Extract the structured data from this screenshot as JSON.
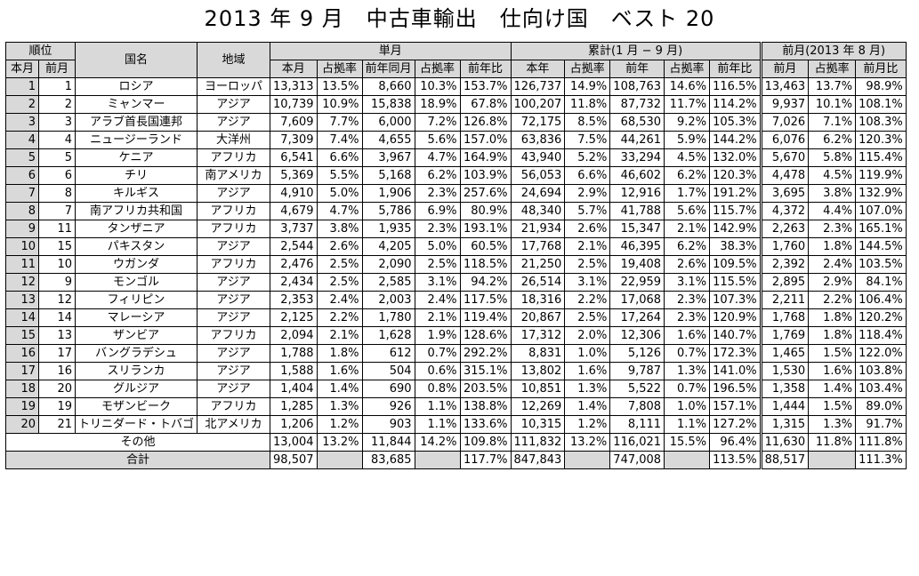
{
  "title": "2013 年 9 月　中古車輸出　仕向け国　ベスト 20",
  "headers": {
    "rank": "順位",
    "rank_current": "本月",
    "rank_prev": "前月",
    "country": "国名",
    "region": "地域",
    "single_month": "単月",
    "cumulative": "累計(1 月 − 9 月)",
    "prev_month": "前月(2013 年 8 月)",
    "col_this_month": "本月",
    "col_share": "占拠率",
    "col_same_month_prev_year": "前年同月",
    "col_yoy": "前年比",
    "col_this_year": "本年",
    "col_prev_year": "前年",
    "col_prev_month": "前月",
    "col_mom": "前月比"
  },
  "rows": [
    {
      "rank": "1",
      "prev_rank": "1",
      "country": "ロシア",
      "region": "ヨーロッパ",
      "m_units": "13,313",
      "m_share": "13.5%",
      "m_py_units": "8,660",
      "m_py_share": "10.3%",
      "m_yoy": "153.7%",
      "c_units": "126,737",
      "c_share": "14.9%",
      "c_py_units": "108,763",
      "c_py_share": "14.6%",
      "c_yoy": "116.5%",
      "p_units": "13,463",
      "p_share": "13.7%",
      "p_mom": "98.9%"
    },
    {
      "rank": "2",
      "prev_rank": "2",
      "country": "ミャンマー",
      "region": "アジア",
      "m_units": "10,739",
      "m_share": "10.9%",
      "m_py_units": "15,838",
      "m_py_share": "18.9%",
      "m_yoy": "67.8%",
      "c_units": "100,207",
      "c_share": "11.8%",
      "c_py_units": "87,732",
      "c_py_share": "11.7%",
      "c_yoy": "114.2%",
      "p_units": "9,937",
      "p_share": "10.1%",
      "p_mom": "108.1%"
    },
    {
      "rank": "3",
      "prev_rank": "3",
      "country": "アラブ首長国連邦",
      "region": "アジア",
      "m_units": "7,609",
      "m_share": "7.7%",
      "m_py_units": "6,000",
      "m_py_share": "7.2%",
      "m_yoy": "126.8%",
      "c_units": "72,175",
      "c_share": "8.5%",
      "c_py_units": "68,530",
      "c_py_share": "9.2%",
      "c_yoy": "105.3%",
      "p_units": "7,026",
      "p_share": "7.1%",
      "p_mom": "108.3%"
    },
    {
      "rank": "4",
      "prev_rank": "4",
      "country": "ニュージーランド",
      "region": "大洋州",
      "m_units": "7,309",
      "m_share": "7.4%",
      "m_py_units": "4,655",
      "m_py_share": "5.6%",
      "m_yoy": "157.0%",
      "c_units": "63,836",
      "c_share": "7.5%",
      "c_py_units": "44,261",
      "c_py_share": "5.9%",
      "c_yoy": "144.2%",
      "p_units": "6,076",
      "p_share": "6.2%",
      "p_mom": "120.3%"
    },
    {
      "rank": "5",
      "prev_rank": "5",
      "country": "ケニア",
      "region": "アフリカ",
      "m_units": "6,541",
      "m_share": "6.6%",
      "m_py_units": "3,967",
      "m_py_share": "4.7%",
      "m_yoy": "164.9%",
      "c_units": "43,940",
      "c_share": "5.2%",
      "c_py_units": "33,294",
      "c_py_share": "4.5%",
      "c_yoy": "132.0%",
      "p_units": "5,670",
      "p_share": "5.8%",
      "p_mom": "115.4%"
    },
    {
      "rank": "6",
      "prev_rank": "6",
      "country": "チリ",
      "region": "南アメリカ",
      "m_units": "5,369",
      "m_share": "5.5%",
      "m_py_units": "5,168",
      "m_py_share": "6.2%",
      "m_yoy": "103.9%",
      "c_units": "56,053",
      "c_share": "6.6%",
      "c_py_units": "46,602",
      "c_py_share": "6.2%",
      "c_yoy": "120.3%",
      "p_units": "4,478",
      "p_share": "4.5%",
      "p_mom": "119.9%"
    },
    {
      "rank": "7",
      "prev_rank": "8",
      "country": "キルギス",
      "region": "アジア",
      "m_units": "4,910",
      "m_share": "5.0%",
      "m_py_units": "1,906",
      "m_py_share": "2.3%",
      "m_yoy": "257.6%",
      "c_units": "24,694",
      "c_share": "2.9%",
      "c_py_units": "12,916",
      "c_py_share": "1.7%",
      "c_yoy": "191.2%",
      "p_units": "3,695",
      "p_share": "3.8%",
      "p_mom": "132.9%"
    },
    {
      "rank": "8",
      "prev_rank": "7",
      "country": "南アフリカ共和国",
      "region": "アフリカ",
      "m_units": "4,679",
      "m_share": "4.7%",
      "m_py_units": "5,786",
      "m_py_share": "6.9%",
      "m_yoy": "80.9%",
      "c_units": "48,340",
      "c_share": "5.7%",
      "c_py_units": "41,788",
      "c_py_share": "5.6%",
      "c_yoy": "115.7%",
      "p_units": "4,372",
      "p_share": "4.4%",
      "p_mom": "107.0%"
    },
    {
      "rank": "9",
      "prev_rank": "11",
      "country": "タンザニア",
      "region": "アフリカ",
      "m_units": "3,737",
      "m_share": "3.8%",
      "m_py_units": "1,935",
      "m_py_share": "2.3%",
      "m_yoy": "193.1%",
      "c_units": "21,934",
      "c_share": "2.6%",
      "c_py_units": "15,347",
      "c_py_share": "2.1%",
      "c_yoy": "142.9%",
      "p_units": "2,263",
      "p_share": "2.3%",
      "p_mom": "165.1%"
    },
    {
      "rank": "10",
      "prev_rank": "15",
      "country": "パキスタン",
      "region": "アジア",
      "m_units": "2,544",
      "m_share": "2.6%",
      "m_py_units": "4,205",
      "m_py_share": "5.0%",
      "m_yoy": "60.5%",
      "c_units": "17,768",
      "c_share": "2.1%",
      "c_py_units": "46,395",
      "c_py_share": "6.2%",
      "c_yoy": "38.3%",
      "p_units": "1,760",
      "p_share": "1.8%",
      "p_mom": "144.5%"
    },
    {
      "rank": "11",
      "prev_rank": "10",
      "country": "ウガンダ",
      "region": "アフリカ",
      "m_units": "2,476",
      "m_share": "2.5%",
      "m_py_units": "2,090",
      "m_py_share": "2.5%",
      "m_yoy": "118.5%",
      "c_units": "21,250",
      "c_share": "2.5%",
      "c_py_units": "19,408",
      "c_py_share": "2.6%",
      "c_yoy": "109.5%",
      "p_units": "2,392",
      "p_share": "2.4%",
      "p_mom": "103.5%"
    },
    {
      "rank": "12",
      "prev_rank": "9",
      "country": "モンゴル",
      "region": "アジア",
      "m_units": "2,434",
      "m_share": "2.5%",
      "m_py_units": "2,585",
      "m_py_share": "3.1%",
      "m_yoy": "94.2%",
      "c_units": "26,514",
      "c_share": "3.1%",
      "c_py_units": "22,959",
      "c_py_share": "3.1%",
      "c_yoy": "115.5%",
      "p_units": "2,895",
      "p_share": "2.9%",
      "p_mom": "84.1%"
    },
    {
      "rank": "13",
      "prev_rank": "12",
      "country": "フィリピン",
      "region": "アジア",
      "m_units": "2,353",
      "m_share": "2.4%",
      "m_py_units": "2,003",
      "m_py_share": "2.4%",
      "m_yoy": "117.5%",
      "c_units": "18,316",
      "c_share": "2.2%",
      "c_py_units": "17,068",
      "c_py_share": "2.3%",
      "c_yoy": "107.3%",
      "p_units": "2,211",
      "p_share": "2.2%",
      "p_mom": "106.4%"
    },
    {
      "rank": "14",
      "prev_rank": "14",
      "country": "マレーシア",
      "region": "アジア",
      "m_units": "2,125",
      "m_share": "2.2%",
      "m_py_units": "1,780",
      "m_py_share": "2.1%",
      "m_yoy": "119.4%",
      "c_units": "20,867",
      "c_share": "2.5%",
      "c_py_units": "17,264",
      "c_py_share": "2.3%",
      "c_yoy": "120.9%",
      "p_units": "1,768",
      "p_share": "1.8%",
      "p_mom": "120.2%"
    },
    {
      "rank": "15",
      "prev_rank": "13",
      "country": "ザンビア",
      "region": "アフリカ",
      "m_units": "2,094",
      "m_share": "2.1%",
      "m_py_units": "1,628",
      "m_py_share": "1.9%",
      "m_yoy": "128.6%",
      "c_units": "17,312",
      "c_share": "2.0%",
      "c_py_units": "12,306",
      "c_py_share": "1.6%",
      "c_yoy": "140.7%",
      "p_units": "1,769",
      "p_share": "1.8%",
      "p_mom": "118.4%"
    },
    {
      "rank": "16",
      "prev_rank": "17",
      "country": "バングラデシュ",
      "region": "アジア",
      "m_units": "1,788",
      "m_share": "1.8%",
      "m_py_units": "612",
      "m_py_share": "0.7%",
      "m_yoy": "292.2%",
      "c_units": "8,831",
      "c_share": "1.0%",
      "c_py_units": "5,126",
      "c_py_share": "0.7%",
      "c_yoy": "172.3%",
      "p_units": "1,465",
      "p_share": "1.5%",
      "p_mom": "122.0%"
    },
    {
      "rank": "17",
      "prev_rank": "16",
      "country": "スリランカ",
      "region": "アジア",
      "m_units": "1,588",
      "m_share": "1.6%",
      "m_py_units": "504",
      "m_py_share": "0.6%",
      "m_yoy": "315.1%",
      "c_units": "13,802",
      "c_share": "1.6%",
      "c_py_units": "9,787",
      "c_py_share": "1.3%",
      "c_yoy": "141.0%",
      "p_units": "1,530",
      "p_share": "1.6%",
      "p_mom": "103.8%"
    },
    {
      "rank": "18",
      "prev_rank": "20",
      "country": "グルジア",
      "region": "アジア",
      "m_units": "1,404",
      "m_share": "1.4%",
      "m_py_units": "690",
      "m_py_share": "0.8%",
      "m_yoy": "203.5%",
      "c_units": "10,851",
      "c_share": "1.3%",
      "c_py_units": "5,522",
      "c_py_share": "0.7%",
      "c_yoy": "196.5%",
      "p_units": "1,358",
      "p_share": "1.4%",
      "p_mom": "103.4%"
    },
    {
      "rank": "19",
      "prev_rank": "19",
      "country": "モザンビーク",
      "region": "アフリカ",
      "m_units": "1,285",
      "m_share": "1.3%",
      "m_py_units": "926",
      "m_py_share": "1.1%",
      "m_yoy": "138.8%",
      "c_units": "12,269",
      "c_share": "1.4%",
      "c_py_units": "7,808",
      "c_py_share": "1.0%",
      "c_yoy": "157.1%",
      "p_units": "1,444",
      "p_share": "1.5%",
      "p_mom": "89.0%"
    },
    {
      "rank": "20",
      "prev_rank": "21",
      "country": "トリニダード・トバゴ",
      "region": "北アメリカ",
      "m_units": "1,206",
      "m_share": "1.2%",
      "m_py_units": "903",
      "m_py_share": "1.1%",
      "m_yoy": "133.6%",
      "c_units": "10,315",
      "c_share": "1.2%",
      "c_py_units": "8,111",
      "c_py_share": "1.1%",
      "c_yoy": "127.2%",
      "p_units": "1,315",
      "p_share": "1.3%",
      "p_mom": "91.7%"
    }
  ],
  "other": {
    "label": "その他",
    "m_units": "13,004",
    "m_share": "13.2%",
    "m_py_units": "11,844",
    "m_py_share": "14.2%",
    "m_yoy": "109.8%",
    "c_units": "111,832",
    "c_share": "13.2%",
    "c_py_units": "116,021",
    "c_py_share": "15.5%",
    "c_yoy": "96.4%",
    "p_units": "11,630",
    "p_share": "11.8%",
    "p_mom": "111.8%"
  },
  "total": {
    "label": "合計",
    "m_units": "98,507",
    "m_py_units": "83,685",
    "m_yoy": "117.7%",
    "c_units": "847,843",
    "c_py_units": "747,008",
    "c_yoy": "113.5%",
    "p_units": "88,517",
    "p_mom": "111.3%"
  }
}
